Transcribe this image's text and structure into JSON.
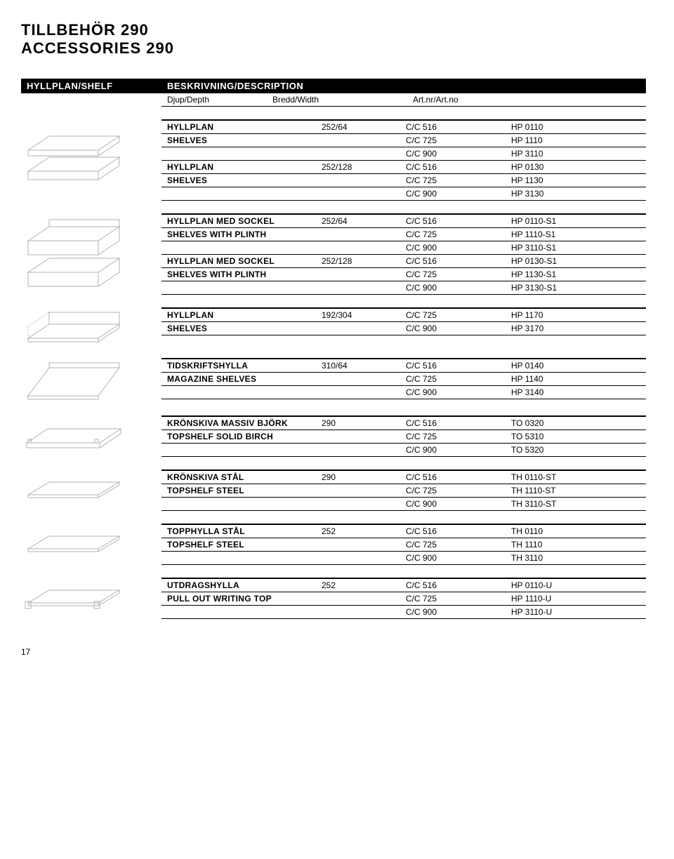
{
  "title1": "TILLBEHÖR 290",
  "title2": "ACCESSORIES 290",
  "header_left": "HYLLPLAN/SHELF",
  "header_right": "BESKRIVNING/DESCRIPTION",
  "subhead_depth": "Djup/Depth",
  "subhead_width": "Bredd/Width",
  "subhead_art": "Art.nr/Art.no",
  "page_number": "17",
  "blocks": [
    {
      "svg": "shelf-threed",
      "rows": [
        {
          "thick": true,
          "name": "HYLLPLAN",
          "depth": "252/64",
          "width": "C/C 516",
          "art": "HP 0110"
        },
        {
          "name": "SHELVES",
          "depth": "",
          "width": "C/C 725",
          "art": "HP 1110"
        },
        {
          "name": "",
          "depth": "",
          "width": "C/C 900",
          "art": "HP 3110"
        },
        {
          "name": "HYLLPLAN",
          "depth": "252/128",
          "width": "C/C 516",
          "art": "HP 0130"
        },
        {
          "name": "SHELVES",
          "depth": "",
          "width": "C/C 725",
          "art": "HP 1130"
        },
        {
          "name": "",
          "depth": "",
          "width": "C/C 900",
          "art": "HP 3130"
        }
      ]
    },
    {
      "svg": "shelf-plinth",
      "rows": [
        {
          "thick": true,
          "name": "HYLLPLAN MED SOCKEL",
          "depth": "252/64",
          "width": "C/C 516",
          "art": "HP 0110-S1"
        },
        {
          "name": "SHELVES WITH PLINTH",
          "depth": "",
          "width": "C/C 725",
          "art": "HP 1110-S1"
        },
        {
          "name": "",
          "depth": "",
          "width": "C/C 900",
          "art": "HP 3110-S1"
        },
        {
          "name": "HYLLPLAN MED SOCKEL",
          "depth": "252/128",
          "width": "C/C 516",
          "art": "HP 0130-S1"
        },
        {
          "name": "SHELVES WITH PLINTH",
          "depth": "",
          "width": "C/C 725",
          "art": "HP 1130-S1"
        },
        {
          "name": "",
          "depth": "",
          "width": "C/C 900",
          "art": "HP 3130-S1"
        }
      ]
    },
    {
      "svg": "shelf-l",
      "rows": [
        {
          "thick": true,
          "name": "HYLLPLAN",
          "depth": "192/304",
          "width": "C/C 725",
          "art": "HP 1170"
        },
        {
          "name": "SHELVES",
          "depth": "",
          "width": "C/C 900",
          "art": "HP 3170"
        }
      ]
    },
    {
      "svg": "shelf-angle",
      "rows": [
        {
          "thick": true,
          "name": "TIDSKRIFTSHYLLA",
          "depth": "310/64",
          "width": "C/C 516",
          "art": "HP 0140"
        },
        {
          "name": "MAGAZINE SHELVES",
          "depth": "",
          "width": "C/C 725",
          "art": "HP 1140"
        },
        {
          "name": "",
          "depth": "",
          "width": "C/C 900",
          "art": "HP 3140"
        }
      ]
    },
    {
      "svg": "shelf-board",
      "rows": [
        {
          "thick": true,
          "name": "KRÖNSKIVA MASSIV BJÖRK",
          "depth": "290",
          "width": "C/C 516",
          "art": "TO 0320"
        },
        {
          "name": "TOPSHELF SOLID BIRCH",
          "depth": "",
          "width": "C/C 725",
          "art": "TO 5310"
        },
        {
          "name": "",
          "depth": "",
          "width": "C/C 900",
          "art": "TO 5320"
        }
      ]
    },
    {
      "svg": "shelf-flat",
      "rows": [
        {
          "thick": true,
          "name": "KRÖNSKIVA STÅL",
          "depth": "290",
          "width": "C/C 516",
          "art": "TH 0110-ST"
        },
        {
          "name": "TOPSHELF STEEL",
          "depth": "",
          "width": "C/C 725",
          "art": "TH 1110-ST"
        },
        {
          "name": "",
          "depth": "",
          "width": "C/C 900",
          "art": "TH 3110-ST"
        }
      ]
    },
    {
      "svg": "shelf-flat",
      "rows": [
        {
          "thick": true,
          "name": "TOPPHYLLA STÅL",
          "depth": "252",
          "width": "C/C 516",
          "art": "TH 0110"
        },
        {
          "name": "TOPSHELF STEEL",
          "depth": "",
          "width": "C/C 725",
          "art": "TH 1110"
        },
        {
          "name": "",
          "depth": "",
          "width": "C/C 900",
          "art": "TH 3110"
        }
      ]
    },
    {
      "svg": "shelf-pullout",
      "rows": [
        {
          "thick": true,
          "name": "UTDRAGSHYLLA",
          "depth": "252",
          "width": "C/C 516",
          "art": "HP 0110-U"
        },
        {
          "name": "PULL OUT WRITING TOP",
          "depth": "",
          "width": "C/C 725",
          "art": "HP 1110-U"
        },
        {
          "name": "",
          "depth": "",
          "width": "C/C 900",
          "art": "HP 3110-U"
        }
      ]
    }
  ],
  "svg_stroke": "#b0b0b0",
  "svg_stroke_width": 1
}
